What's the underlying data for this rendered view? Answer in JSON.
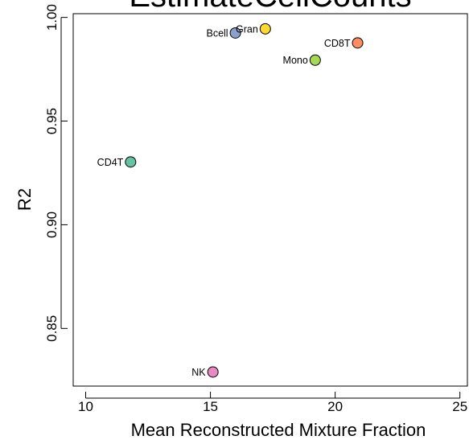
{
  "chart_data": {
    "type": "scatter",
    "title": "EstimateCellCounts",
    "xlabel": "Mean Reconstructed Mixture Fraction",
    "ylabel": "R2",
    "xlim": [
      9.5,
      25.3
    ],
    "ylim": [
      0.8222,
      1.0018
    ],
    "x_ticks": [
      10,
      15,
      20,
      25
    ],
    "y_ticks": [
      0.85,
      0.9,
      0.95,
      1.0
    ],
    "x_tick_labels": [
      "10",
      "15",
      "20",
      "25"
    ],
    "y_tick_labels": [
      "0.85",
      "0.90",
      "0.95",
      "1.00"
    ],
    "grid": false,
    "points": [
      {
        "label": "Bcell",
        "x": 16.0,
        "y": 0.9925,
        "color": "#8DA0CB",
        "label_side": "left"
      },
      {
        "label": "Gran",
        "x": 17.2,
        "y": 0.9945,
        "color": "#FFD92F",
        "label_side": "left"
      },
      {
        "label": "CD8T",
        "x": 20.9,
        "y": 0.9877,
        "color": "#FC8D62",
        "label_side": "left"
      },
      {
        "label": "Mono",
        "x": 19.2,
        "y": 0.9794,
        "color": "#A6D854",
        "label_side": "left"
      },
      {
        "label": "CD4T",
        "x": 11.8,
        "y": 0.9303,
        "color": "#66C2A5",
        "label_side": "left"
      },
      {
        "label": "NK",
        "x": 15.1,
        "y": 0.829,
        "color": "#E78AC3",
        "label_side": "left"
      }
    ]
  }
}
